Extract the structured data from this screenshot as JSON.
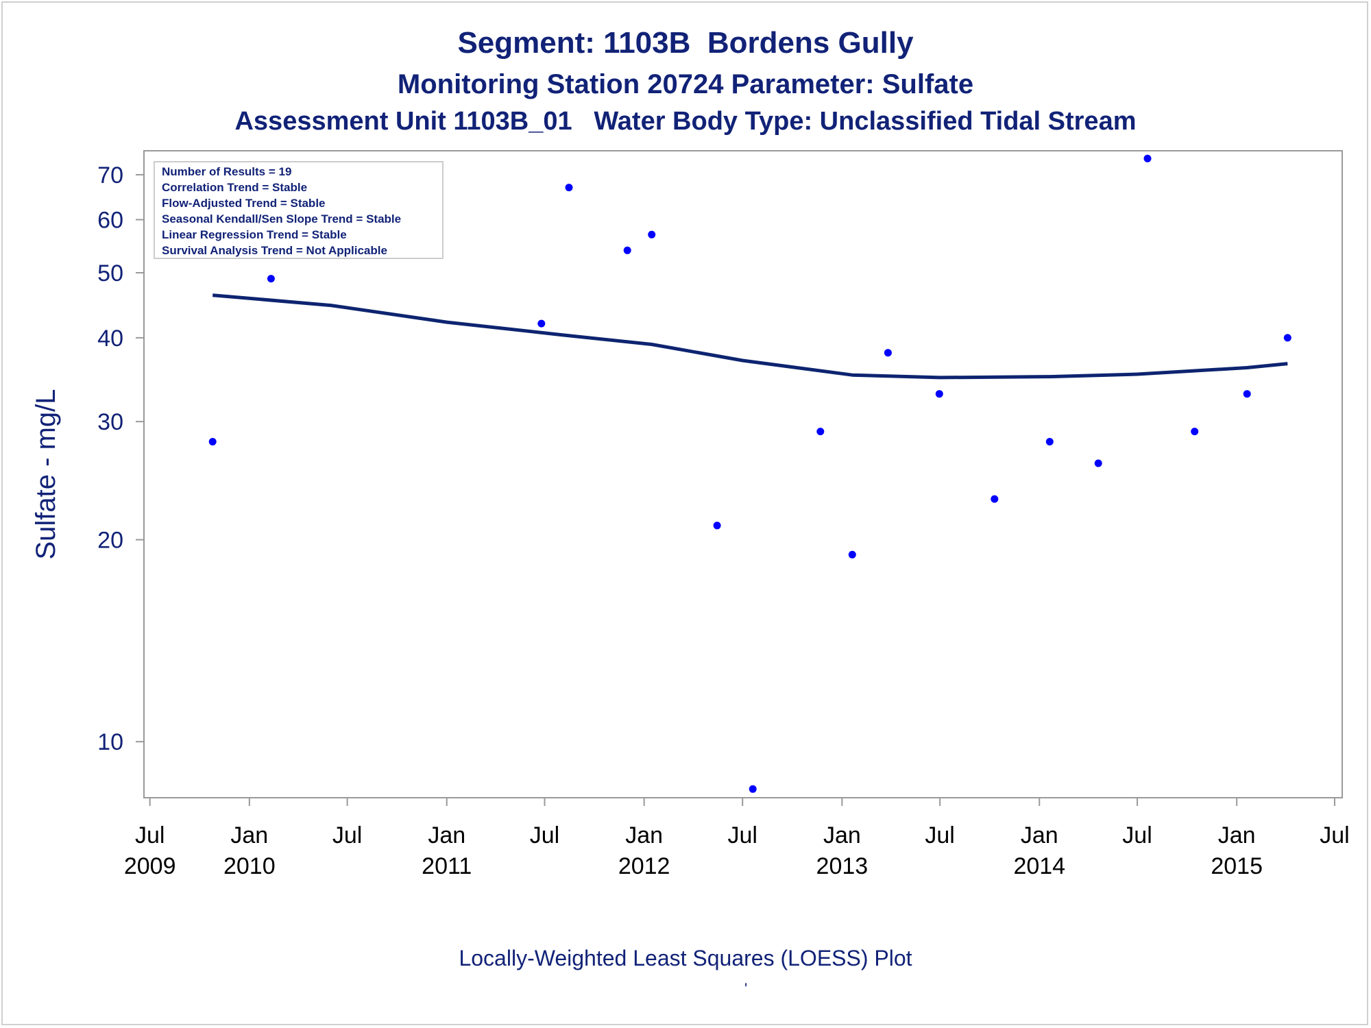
{
  "titles": {
    "line1": "Segment: 1103B  Bordens Gully",
    "line2": "Monitoring Station 20724 Parameter: Sulfate",
    "line3": "Assessment Unit 1103B_01   Water Body Type: Unclassified Tidal Stream"
  },
  "footnote": "Locally-Weighted Least Squares (LOESS) Plot",
  "footnote_mark": "'",
  "colors": {
    "text": "#112277",
    "points": "#0000ff",
    "loess_line": "#0d2470",
    "axis": "#999999"
  },
  "chart_data": {
    "type": "scatter",
    "ylabel": "Sulfate - mg/L",
    "yscale": "log",
    "ylim": [
      8.25,
      76
    ],
    "xlim": [
      "2009-06-20",
      "2015-07-15"
    ],
    "yticks": [
      10,
      20,
      30,
      40,
      50,
      60,
      70
    ],
    "xticks": [
      {
        "date": "2009-07-01",
        "label1": "Jul",
        "label2": "2009"
      },
      {
        "date": "2010-01-01",
        "label1": "Jan",
        "label2": "2010"
      },
      {
        "date": "2010-07-01",
        "label1": "Jul",
        "label2": ""
      },
      {
        "date": "2011-01-01",
        "label1": "Jan",
        "label2": "2011"
      },
      {
        "date": "2011-07-01",
        "label1": "Jul",
        "label2": ""
      },
      {
        "date": "2012-01-01",
        "label1": "Jan",
        "label2": "2012"
      },
      {
        "date": "2012-07-01",
        "label1": "Jul",
        "label2": ""
      },
      {
        "date": "2013-01-01",
        "label1": "Jan",
        "label2": "2013"
      },
      {
        "date": "2013-07-01",
        "label1": "Jul",
        "label2": ""
      },
      {
        "date": "2014-01-01",
        "label1": "Jan",
        "label2": "2014"
      },
      {
        "date": "2014-07-01",
        "label1": "Jul",
        "label2": ""
      },
      {
        "date": "2015-01-01",
        "label1": "Jan",
        "label2": "2015"
      },
      {
        "date": "2015-07-01",
        "label1": "Jul",
        "label2": ""
      }
    ],
    "legend_box": {
      "placement": "top-left",
      "lines": [
        "Number of Results = 19",
        "Correlation Trend = Stable",
        "Flow-Adjusted Trend = Stable",
        "Seasonal Kendall/Sen Slope Trend = Stable",
        "Linear Regression Trend = Stable",
        "Survival Analysis Trend = Not Applicable"
      ]
    },
    "points": [
      {
        "x": "2009-10-25",
        "y": 28
      },
      {
        "x": "2010-02-10",
        "y": 49
      },
      {
        "x": "2011-06-25",
        "y": 42
      },
      {
        "x": "2011-08-15",
        "y": 67
      },
      {
        "x": "2011-12-01",
        "y": 54
      },
      {
        "x": "2012-01-15",
        "y": 57
      },
      {
        "x": "2012-05-15",
        "y": 21
      },
      {
        "x": "2012-07-20",
        "y": 8.5
      },
      {
        "x": "2012-11-22",
        "y": 29
      },
      {
        "x": "2013-01-20",
        "y": 19
      },
      {
        "x": "2013-03-27",
        "y": 38
      },
      {
        "x": "2013-06-30",
        "y": 33
      },
      {
        "x": "2013-10-10",
        "y": 23
      },
      {
        "x": "2014-01-20",
        "y": 28
      },
      {
        "x": "2014-04-20",
        "y": 26
      },
      {
        "x": "2014-07-20",
        "y": 74
      },
      {
        "x": "2014-10-15",
        "y": 29
      },
      {
        "x": "2015-01-20",
        "y": 33
      },
      {
        "x": "2015-04-05",
        "y": 40
      }
    ],
    "loess": [
      {
        "x": "2009-10-25",
        "y": 46.3
      },
      {
        "x": "2010-06-01",
        "y": 44.7
      },
      {
        "x": "2011-01-01",
        "y": 42.2
      },
      {
        "x": "2011-08-01",
        "y": 40.4
      },
      {
        "x": "2012-01-15",
        "y": 39.1
      },
      {
        "x": "2012-07-01",
        "y": 37.0
      },
      {
        "x": "2013-01-20",
        "y": 35.2
      },
      {
        "x": "2013-07-01",
        "y": 34.9
      },
      {
        "x": "2014-01-20",
        "y": 35.0
      },
      {
        "x": "2014-07-01",
        "y": 35.3
      },
      {
        "x": "2015-01-20",
        "y": 36.1
      },
      {
        "x": "2015-04-05",
        "y": 36.6
      }
    ]
  }
}
